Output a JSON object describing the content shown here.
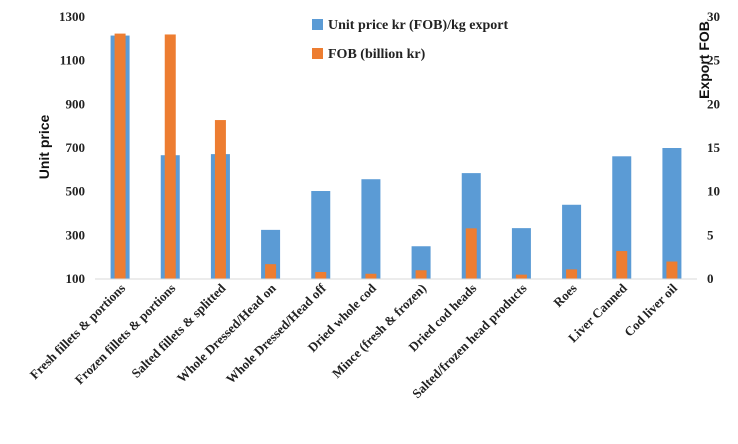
{
  "chart_data": {
    "type": "bar",
    "categories": [
      "Fresh fillets & portions",
      "Frozen fillets & portions",
      "Salted fillets & splitted",
      "Whole Dressed/Head on",
      "Whole Dressed/Head off",
      "Dried whole cod",
      "Mince (fresh & frozen)",
      "Dried cod heads",
      "Salted/frozen head products",
      "Roes",
      "Liver Canned",
      "Cod liver oil"
    ],
    "series": [
      {
        "name": "Unit price kr (FOB)/kg export",
        "axis": "left",
        "color": "#5b9bd5",
        "values": [
          1215,
          667,
          672,
          325,
          503,
          557,
          250,
          585,
          333,
          440,
          662,
          700
        ]
      },
      {
        "name": "FOB (billion kr)",
        "axis": "right",
        "color": "#ed7d31",
        "values": [
          28.1,
          28.0,
          18.2,
          1.7,
          0.8,
          0.6,
          1.0,
          5.8,
          0.5,
          1.1,
          3.2,
          2.0
        ]
      }
    ],
    "ylabel": "Unit price",
    "y2label": "Export FOB",
    "ylim": [
      100,
      1300
    ],
    "yticks": [
      100,
      300,
      500,
      700,
      900,
      1100,
      1300
    ],
    "y2lim": [
      0,
      30
    ],
    "y2ticks": [
      0,
      5,
      10,
      15,
      20,
      25,
      30
    ],
    "grid": false,
    "legend": "top-center"
  }
}
